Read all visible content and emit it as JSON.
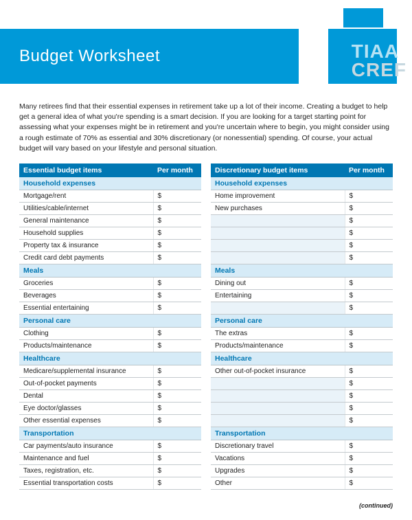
{
  "header": {
    "title": "Budget Worksheet",
    "logo_line1": "TIAA",
    "logo_line2": "CREF"
  },
  "intro": "Many retirees find that their essential expenses in retirement take up a lot of their income. Creating a budget to help get a general idea of what you're spending is a smart decision. If you are looking for a target starting point for assessing what your expenses might be in retirement and you're uncertain where to begin, you might consider using a rough estimate of 70% as essential and 30% discretionary (or nonessential) spending. Of course, your actual budget will vary based on your lifestyle and personal situation.",
  "currency_symbol": "$",
  "continued": "(continued)",
  "left_table": {
    "header_label": "Essential budget items",
    "header_amount": "Per month",
    "sections": [
      {
        "title": "Household expenses",
        "items": [
          "Mortgage/rent",
          "Utilities/cable/internet",
          "General maintenance",
          "Household supplies",
          "Property tax & insurance",
          "Credit card debt payments"
        ]
      },
      {
        "title": "Meals",
        "items": [
          "Groceries",
          "Beverages",
          "Essential entertaining"
        ]
      },
      {
        "title": "Personal care",
        "items": [
          "Clothing",
          "Products/maintenance"
        ]
      },
      {
        "title": "Healthcare",
        "items": [
          "Medicare/supplemental insurance",
          "Out-of-pocket payments",
          "Dental",
          "Eye doctor/glasses",
          "Other essential expenses"
        ]
      },
      {
        "title": "Transportation",
        "items": [
          "Car payments/auto insurance",
          "Maintenance and fuel",
          "Taxes, registration, etc.",
          "Essential transportation costs"
        ]
      }
    ]
  },
  "right_table": {
    "header_label": "Discretionary budget items",
    "header_amount": "Per month",
    "sections": [
      {
        "title": "Household expenses",
        "items": [
          "Home improvement",
          "New purchases"
        ],
        "blanks": 4
      },
      {
        "title": "Meals",
        "items": [
          "Dining out",
          "Entertaining"
        ],
        "blanks": 1
      },
      {
        "title": "Personal care",
        "items": [
          "The extras",
          "Products/maintenance"
        ],
        "blanks": 0
      },
      {
        "title": "Healthcare",
        "items": [
          "Other out-of-pocket insurance"
        ],
        "blanks": 4
      },
      {
        "title": "Transportation",
        "items": [
          "Discretionary travel",
          "Vacations",
          "Upgrades",
          "Other"
        ],
        "blanks": 0
      }
    ]
  },
  "colors": {
    "brand_blue": "#0099d8",
    "dark_blue": "#0077b3",
    "section_bg": "#d6ebf7",
    "blank_bg": "#eaf3f9",
    "rule": "#c3c9cd"
  }
}
